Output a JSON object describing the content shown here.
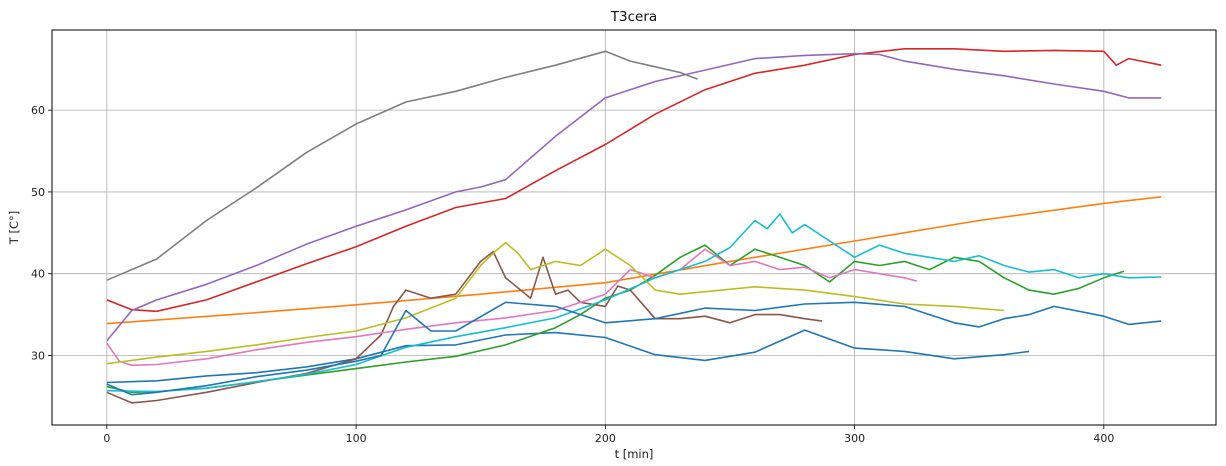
{
  "chart_data": {
    "type": "line",
    "title": "T3cera",
    "xlabel": "t [min]",
    "ylabel": "T [C°]",
    "xlim": [
      -22,
      445
    ],
    "ylim": [
      21.5,
      69.8
    ],
    "xticks": [
      0,
      100,
      200,
      300,
      400
    ],
    "yticks": [
      30,
      40,
      50,
      60
    ],
    "grid": true,
    "series": [
      {
        "color": "#1f77b4",
        "x": [
          0,
          20,
          40,
          60,
          80,
          100,
          120,
          140,
          160,
          180,
          200,
          220,
          240,
          260,
          280,
          300,
          320,
          340,
          360,
          370
        ],
        "y": [
          26.7,
          26.9,
          27.5,
          27.9,
          28.6,
          29.6,
          31.2,
          31.3,
          32.5,
          32.8,
          32.2,
          30.1,
          29.4,
          30.4,
          33.1,
          30.9,
          30.5,
          29.6,
          30.1,
          30.5
        ]
      },
      {
        "color": "#ff7f0e",
        "x": [
          0,
          50,
          100,
          150,
          200,
          250,
          300,
          350,
          400,
          423
        ],
        "y": [
          33.9,
          35.0,
          36.2,
          37.5,
          38.9,
          41.5,
          44.0,
          46.5,
          48.6,
          49.4
        ]
      },
      {
        "color": "#2ca02c",
        "x": [
          0,
          10,
          20,
          40,
          60,
          80,
          100,
          120,
          140,
          160,
          180,
          190,
          200,
          210,
          220,
          230,
          240,
          250,
          260,
          270,
          280,
          290,
          300,
          310,
          320,
          330,
          340,
          350,
          360,
          370,
          380,
          390,
          400,
          408
        ],
        "y": [
          26.2,
          25.5,
          25.6,
          26.0,
          26.8,
          27.6,
          28.4,
          29.2,
          29.9,
          31.3,
          33.4,
          35.0,
          37.0,
          38.0,
          39.8,
          42.0,
          43.5,
          41.0,
          43.0,
          42.0,
          41.0,
          39.0,
          41.5,
          41.0,
          41.5,
          40.5,
          42.0,
          41.5,
          39.5,
          38.0,
          37.5,
          38.2,
          39.5,
          40.3
        ]
      },
      {
        "color": "#d62728",
        "x": [
          0,
          10,
          20,
          40,
          60,
          80,
          100,
          120,
          140,
          160,
          180,
          200,
          220,
          240,
          260,
          280,
          300,
          320,
          340,
          360,
          380,
          400,
          405,
          410,
          423
        ],
        "y": [
          36.8,
          35.6,
          35.4,
          36.8,
          39.0,
          41.2,
          43.3,
          45.8,
          48.1,
          49.2,
          52.6,
          55.8,
          59.5,
          62.5,
          64.5,
          65.5,
          66.8,
          67.5,
          67.5,
          67.2,
          67.3,
          67.2,
          65.5,
          66.3,
          65.5
        ]
      },
      {
        "color": "#9467bd",
        "x": [
          0,
          10,
          20,
          40,
          60,
          80,
          100,
          120,
          140,
          150,
          160,
          180,
          200,
          220,
          240,
          260,
          280,
          300,
          310,
          320,
          340,
          360,
          380,
          400,
          410,
          423
        ],
        "y": [
          31.8,
          35.5,
          36.8,
          38.7,
          41.0,
          43.6,
          45.8,
          47.8,
          50.0,
          50.6,
          51.5,
          56.8,
          61.5,
          63.5,
          64.9,
          66.3,
          66.7,
          66.9,
          66.8,
          66.0,
          65.0,
          64.2,
          63.2,
          62.3,
          61.5,
          61.5
        ]
      },
      {
        "color": "#8c564b",
        "x": [
          0,
          10,
          20,
          40,
          60,
          80,
          100,
          110,
          115,
          120,
          130,
          140,
          150,
          155,
          160,
          170,
          175,
          180,
          185,
          190,
          200,
          205,
          210,
          220,
          230,
          240,
          250,
          260,
          270,
          280,
          287
        ],
        "y": [
          25.5,
          24.2,
          24.5,
          25.5,
          26.7,
          27.8,
          29.6,
          32.5,
          36.0,
          38.0,
          37.0,
          37.5,
          41.5,
          42.7,
          39.5,
          37.0,
          42.0,
          37.5,
          38.0,
          36.5,
          36.0,
          38.5,
          38.0,
          34.5,
          34.5,
          34.8,
          34.0,
          35.0,
          35.0,
          34.5,
          34.2
        ]
      },
      {
        "color": "#e377c2",
        "x": [
          0,
          5,
          10,
          20,
          40,
          60,
          80,
          100,
          120,
          140,
          160,
          180,
          200,
          210,
          220,
          230,
          240,
          250,
          260,
          270,
          280,
          290,
          300,
          310,
          320,
          325
        ],
        "y": [
          31.5,
          29.3,
          28.8,
          28.9,
          29.6,
          30.7,
          31.6,
          32.3,
          33.2,
          34.0,
          34.6,
          35.5,
          37.5,
          40.5,
          39.5,
          40.5,
          43.0,
          41.0,
          41.5,
          40.5,
          40.8,
          39.5,
          40.5,
          40.0,
          39.5,
          39.1
        ]
      },
      {
        "color": "#7f7f7f",
        "x": [
          0,
          20,
          40,
          60,
          80,
          100,
          120,
          140,
          160,
          180,
          200,
          210,
          220,
          230,
          237
        ],
        "y": [
          39.2,
          41.8,
          46.5,
          50.5,
          54.8,
          58.3,
          61.0,
          62.3,
          64.0,
          65.5,
          67.2,
          66.0,
          65.3,
          64.6,
          63.8
        ]
      },
      {
        "color": "#bcbd22",
        "x": [
          0,
          20,
          40,
          60,
          80,
          100,
          120,
          140,
          150,
          155,
          160,
          165,
          170,
          180,
          190,
          200,
          210,
          220,
          230,
          240,
          260,
          280,
          300,
          320,
          340,
          360
        ],
        "y": [
          29.0,
          29.8,
          30.5,
          31.3,
          32.2,
          33.0,
          34.6,
          37.0,
          41.0,
          42.5,
          43.8,
          42.5,
          40.5,
          41.5,
          41.0,
          43.0,
          41.0,
          38.0,
          37.5,
          37.8,
          38.4,
          38.0,
          37.2,
          36.3,
          36.0,
          35.5
        ]
      },
      {
        "color": "#17becf",
        "x": [
          0,
          20,
          40,
          60,
          80,
          100,
          120,
          140,
          160,
          180,
          200,
          220,
          240,
          250,
          260,
          265,
          270,
          275,
          280,
          290,
          300,
          310,
          320,
          330,
          340,
          350,
          360,
          370,
          380,
          390,
          400,
          410,
          423
        ],
        "y": [
          25.7,
          25.6,
          26.0,
          26.8,
          27.7,
          28.9,
          31.0,
          32.3,
          33.4,
          34.6,
          36.8,
          39.5,
          41.5,
          43.2,
          46.5,
          45.5,
          47.3,
          45.0,
          46.0,
          44.0,
          42.0,
          43.5,
          42.5,
          42.0,
          41.5,
          42.2,
          41.0,
          40.2,
          40.5,
          39.5,
          40.0,
          39.5,
          39.6
        ]
      },
      {
        "color": "#1f77b4",
        "x": [
          0,
          10,
          20,
          40,
          60,
          80,
          100,
          110,
          120,
          130,
          140,
          160,
          180,
          200,
          220,
          240,
          260,
          280,
          300,
          320,
          340,
          350,
          360,
          370,
          380,
          400,
          410,
          423
        ],
        "y": [
          26.5,
          25.2,
          25.5,
          26.3,
          27.4,
          28.2,
          29.3,
          30.0,
          35.5,
          33.0,
          33.0,
          36.5,
          36.0,
          34.0,
          34.5,
          35.8,
          35.5,
          36.3,
          36.5,
          36.0,
          34.0,
          33.5,
          34.5,
          35.0,
          36.0,
          34.8,
          33.8,
          34.2
        ]
      }
    ]
  }
}
